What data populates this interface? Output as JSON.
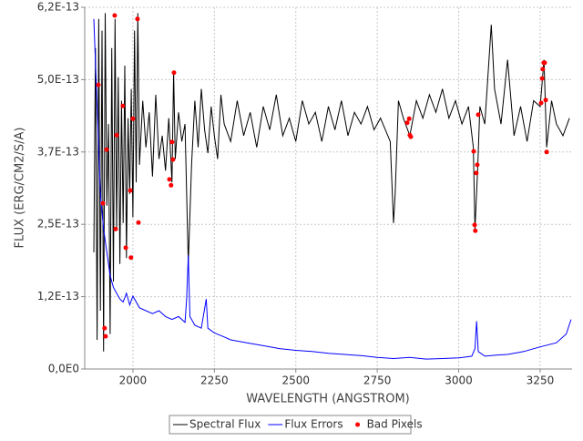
{
  "chart_data": {
    "type": "line",
    "x_label": "WAVELENGTH (ANGSTROM)",
    "y_label": "FLUX (ERG/CM2/S/A)",
    "xlim": [
      1852,
      3348
    ],
    "xticks": [
      2000,
      2250,
      2500,
      2750,
      3000,
      3250
    ],
    "ylim": [
      0,
      6.2e-13
    ],
    "yticks": [
      {
        "value": 0,
        "label": "0,0E0"
      },
      {
        "value": 1.24e-13,
        "label": "1,2E-13"
      },
      {
        "value": 2.48e-13,
        "label": "2,5E-13"
      },
      {
        "value": 3.72e-13,
        "label": "3,7E-13"
      },
      {
        "value": 4.96e-13,
        "label": "5,0E-13"
      },
      {
        "value": 6.2e-13,
        "label": "6,2E-13"
      }
    ],
    "grid": true,
    "legend": "bottom",
    "series": [
      {
        "name": "Spectral Flux",
        "color": "#000000",
        "type": "line",
        "x": [
          1880,
          1885,
          1890,
          1895,
          1900,
          1905,
          1910,
          1915,
          1920,
          1925,
          1930,
          1935,
          1940,
          1945,
          1950,
          1955,
          1960,
          1965,
          1970,
          1975,
          1980,
          1985,
          1990,
          1995,
          2000,
          2005,
          2010,
          2015,
          2020,
          2030,
          2040,
          2050,
          2060,
          2070,
          2080,
          2090,
          2100,
          2110,
          2120,
          2125,
          2130,
          2140,
          2150,
          2160,
          2170,
          2180,
          2190,
          2200,
          2210,
          2220,
          2230,
          2240,
          2250,
          2260,
          2270,
          2280,
          2300,
          2320,
          2340,
          2360,
          2380,
          2400,
          2420,
          2440,
          2460,
          2480,
          2500,
          2520,
          2540,
          2560,
          2580,
          2600,
          2620,
          2640,
          2660,
          2680,
          2700,
          2720,
          2740,
          2760,
          2790,
          2800,
          2805,
          2815,
          2830,
          2850,
          2870,
          2890,
          2910,
          2930,
          2950,
          2970,
          2990,
          3010,
          3030,
          3045,
          3050,
          3058,
          3065,
          3080,
          3100,
          3110,
          3130,
          3150,
          3170,
          3190,
          3210,
          3230,
          3250,
          3262,
          3270,
          3285,
          3300,
          3320,
          3340
        ],
        "values": [
          2e-13,
          5.5e-13,
          5e-14,
          6e-13,
          1e-13,
          5.8e-13,
          3e-14,
          6.1e-13,
          2.8e-13,
          4.2e-13,
          6e-14,
          5.5e-13,
          1.5e-13,
          6e-13,
          2.4e-13,
          5e-13,
          1.8e-13,
          4.6e-13,
          2.5e-13,
          5.2e-13,
          1.9e-13,
          4.3e-13,
          3e-13,
          4.8e-13,
          2.6e-13,
          5.8e-13,
          3.2e-13,
          6.1e-13,
          3.5e-13,
          4.6e-13,
          3.8e-13,
          4.4e-13,
          3.3e-13,
          4.7e-13,
          3.6e-13,
          4e-13,
          3.4e-13,
          4.3e-13,
          3.2e-13,
          5.1e-13,
          3.6e-13,
          4.4e-13,
          3.9e-13,
          4.2e-13,
          1.8e-13,
          3.5e-13,
          4.6e-13,
          3.8e-13,
          4.8e-13,
          4.1e-13,
          3.7e-13,
          4.5e-13,
          4e-13,
          3.6e-13,
          4.7e-13,
          4.2e-13,
          3.9e-13,
          4.6e-13,
          4e-13,
          4.4e-13,
          3.8e-13,
          4.5e-13,
          4.1e-13,
          4.7e-13,
          4e-13,
          4.3e-13,
          3.9e-13,
          4.6e-13,
          4.2e-13,
          4.4e-13,
          3.9e-13,
          4.5e-13,
          4.1e-13,
          4.6e-13,
          4e-13,
          4.4e-13,
          4.2e-13,
          4.5e-13,
          4.1e-13,
          4.3e-13,
          3.9e-13,
          2.5e-13,
          3e-13,
          4.6e-13,
          4.3e-13,
          4e-13,
          4.6e-13,
          4.3e-13,
          4.7e-13,
          4.4e-13,
          4.8e-13,
          4.3e-13,
          4.6e-13,
          4.2e-13,
          4.5e-13,
          3.8e-13,
          2.4e-13,
          3.4e-13,
          4.5e-13,
          4.2e-13,
          5.9e-13,
          4.8e-13,
          4.2e-13,
          5.3e-13,
          4e-13,
          4.5e-13,
          3.9e-13,
          4.6e-13,
          4.5e-13,
          5.3e-13,
          3.8e-13,
          4.6e-13,
          4.2e-13,
          4e-13,
          4.3e-13
        ]
      },
      {
        "name": "Flux Errors",
        "color": "#0000ff",
        "type": "line",
        "x": [
          1880,
          1890,
          1900,
          1910,
          1920,
          1930,
          1940,
          1950,
          1960,
          1970,
          1980,
          1990,
          2000,
          2020,
          2040,
          2060,
          2080,
          2100,
          2120,
          2140,
          2160,
          2165,
          2170,
          2175,
          2190,
          2210,
          2225,
          2230,
          2250,
          2280,
          2300,
          2350,
          2400,
          2450,
          2500,
          2550,
          2600,
          2650,
          2700,
          2750,
          2800,
          2850,
          2900,
          2950,
          3000,
          3040,
          3050,
          3055,
          3060,
          3080,
          3120,
          3150,
          3200,
          3250,
          3300,
          3330,
          3345
        ],
        "values": [
          6e-13,
          4.5e-13,
          3e-13,
          2.4e-13,
          2e-13,
          1.6e-13,
          1.4e-13,
          1.3e-13,
          1.2e-13,
          1.15e-13,
          1.3e-13,
          1.1e-13,
          1.25e-13,
          1.05e-13,
          1e-13,
          9.5e-14,
          1e-13,
          9e-14,
          8.5e-14,
          9e-14,
          8e-14,
          1.2e-13,
          1.95e-13,
          9e-14,
          7.5e-14,
          7e-14,
          1.2e-13,
          7e-14,
          6.2e-14,
          5.5e-14,
          5e-14,
          4.5e-14,
          4e-14,
          3.5e-14,
          3.2e-14,
          3e-14,
          2.7e-14,
          2.5e-14,
          2.3e-14,
          2e-14,
          1.8e-14,
          2e-14,
          1.7e-14,
          1.8e-14,
          1.9e-14,
          2.2e-14,
          3.5e-14,
          8.2e-14,
          3e-14,
          2.2e-14,
          2.4e-14,
          2.5e-14,
          3e-14,
          3.8e-14,
          4.5e-14,
          6e-14,
          8.5e-14
        ]
      },
      {
        "name": "Bad Pixels",
        "color": "#ff0000",
        "type": "scatter",
        "x": [
          1894,
          1908,
          1913,
          1916,
          1919,
          1944,
          1947,
          1950,
          1969,
          1978,
          1992,
          1994,
          2000,
          2014,
          2017,
          2112,
          2117,
          2120,
          2123,
          2126,
          2842,
          2848,
          2850,
          2853,
          3046,
          3049,
          3051,
          3054,
          3057,
          3060,
          3253,
          3256,
          3258,
          3261,
          3264,
          3267,
          3270
        ],
        "values": [
          4.87e-13,
          2.84e-13,
          7e-14,
          5.6e-14,
          3.76e-13,
          6.06e-13,
          2.4e-13,
          4.01e-13,
          4.51e-13,
          2.08e-13,
          3.06e-13,
          1.91e-13,
          4.29e-13,
          6e-13,
          2.51e-13,
          3.25e-13,
          3.15e-13,
          3.89e-13,
          3.59e-13,
          5.08e-13,
          4.22e-13,
          4.29e-13,
          4.01e-13,
          3.98e-13,
          3.73e-13,
          2.47e-13,
          2.37e-13,
          3.36e-13,
          3.5e-13,
          4.36e-13,
          4.56e-13,
          4.98e-13,
          5.14e-13,
          5.25e-13,
          5.25e-13,
          4.61e-13,
          3.72e-13
        ]
      }
    ]
  }
}
